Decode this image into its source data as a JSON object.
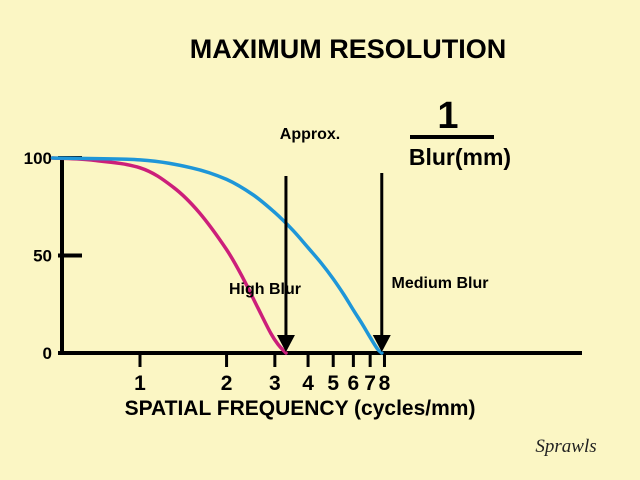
{
  "chart_data": {
    "type": "line",
    "title": "MAXIMUM RESOLUTION",
    "xlabel": "SPATIAL FREQUENCY (cycles/mm)",
    "ylabel": "",
    "x_scale": "log",
    "x_ticks": [
      1,
      2,
      3,
      4,
      5,
      6,
      7,
      8
    ],
    "y_ticks": [
      0,
      50,
      100
    ],
    "xlim": [
      0.6,
      8.5
    ],
    "ylim": [
      0,
      100
    ],
    "grid": false,
    "series": [
      {
        "name": "High Blur",
        "color": "#CC1F7A",
        "x": [
          0.65,
          0.8,
          1.0,
          1.3,
          1.6,
          2.0,
          2.3,
          2.6,
          2.9,
          3.1,
          3.3
        ],
        "values": [
          100,
          99,
          95,
          85,
          72,
          53,
          38,
          23,
          10,
          4,
          0
        ]
      },
      {
        "name": "Medium Blur",
        "color": "#1E96D8",
        "x": [
          0.65,
          1.0,
          1.5,
          2.0,
          2.5,
          3.0,
          3.5,
          4.0,
          4.5,
          5.0,
          5.5,
          6.0,
          6.5,
          7.0,
          7.5,
          7.8
        ],
        "values": [
          100,
          99,
          95,
          89,
          81,
          72,
          63,
          54,
          46,
          38,
          30,
          22,
          15,
          8,
          2,
          0
        ]
      }
    ],
    "annotations": {
      "approx_label": "Approx.",
      "fraction_numerator": "1",
      "fraction_denominator": "Blur(mm)",
      "arrows_at_x": [
        3.3,
        7.8
      ]
    },
    "signature": "Sprawls"
  }
}
